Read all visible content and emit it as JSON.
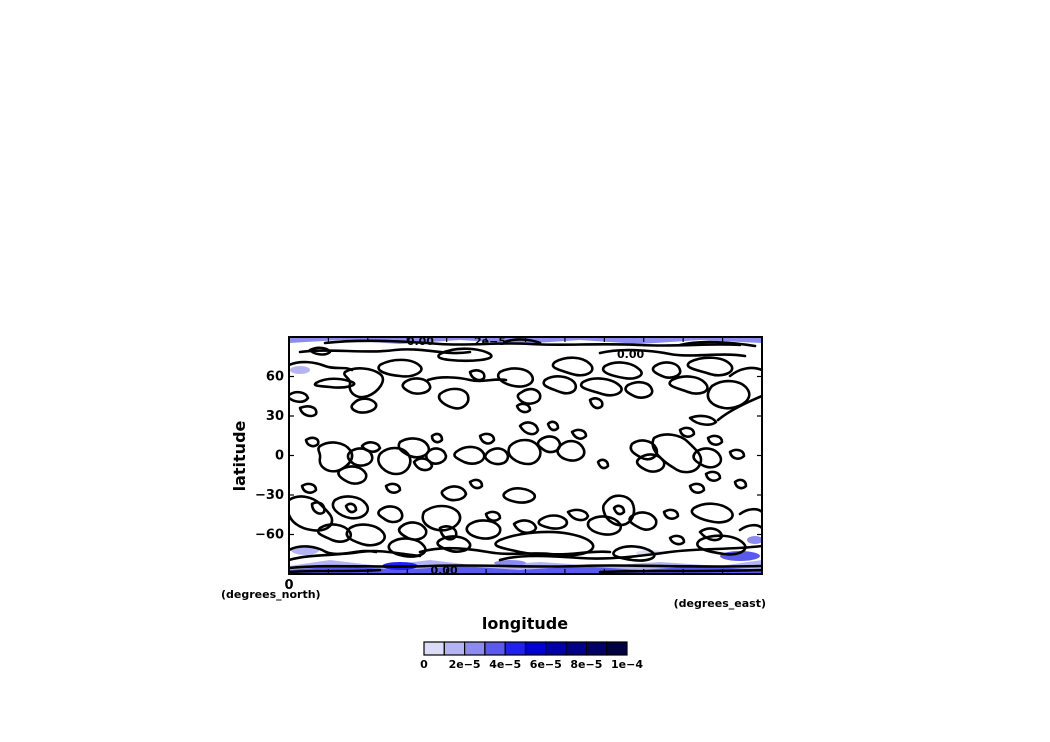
{
  "chart_data": {
    "type": "heatmap",
    "xlabel": "longitude",
    "ylabel": "latitude",
    "x_units": "(degrees_east)",
    "y_units": "(degrees_north)",
    "xlim": [
      0,
      360
    ],
    "ylim": [
      -90,
      90
    ],
    "x_ticks": [
      0
    ],
    "x_tick_labels": [
      "0"
    ],
    "y_ticks": [
      60,
      30,
      0,
      -30,
      -60
    ],
    "y_tick_labels": [
      "60",
      "30",
      "0",
      "−30",
      "−60"
    ],
    "contour_labels": [
      {
        "text": "0.00",
        "lon": 100,
        "lat": 87
      },
      {
        "text": "2e−5",
        "lon": 153,
        "lat": 87
      },
      {
        "text": "0.00",
        "lon": 260,
        "lat": 77
      },
      {
        "text": "0.00",
        "lon": 118,
        "lat": -87
      }
    ],
    "colorbar": {
      "levels": [
        0,
        1e-05,
        2e-05,
        3e-05,
        4e-05,
        5e-05,
        6e-05,
        7e-05,
        8e-05,
        9e-05,
        0.0001
      ],
      "colors": [
        "#dcdcf8",
        "#b4b4f4",
        "#8c8cf0",
        "#5a5aee",
        "#2020f0",
        "#0000d2",
        "#0000aa",
        "#000088",
        "#000066",
        "#000044"
      ],
      "labels": [
        "0",
        "2e−5",
        "4e−5",
        "6e−5",
        "8e−5",
        "1e−4"
      ],
      "label_levels": [
        0,
        2e-05,
        4e-05,
        6e-05,
        8e-05,
        0.0001
      ]
    },
    "grid": false
  }
}
